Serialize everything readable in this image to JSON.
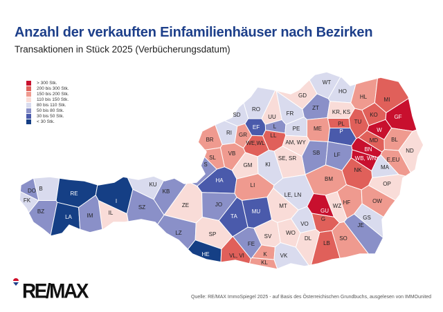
{
  "header": {
    "title": "Anzahl der verkauften Einfamilienhäuser nach Bezirken",
    "subtitle": "Transaktionen in Stück 2025 (Verbücherungsdatum)"
  },
  "legend": [
    {
      "label": "> 300 Stk.",
      "color": "#c8102e"
    },
    {
      "label": "200 bis 300 Stk.",
      "color": "#e0605a"
    },
    {
      "label": "150 bis 200 Stk.",
      "color": "#ef9a8f"
    },
    {
      "label": "110 bis 150 Stk.",
      "color": "#f9dcd8"
    },
    {
      "label": "80 bis  110 Stk.",
      "color": "#d9dbee"
    },
    {
      "label": "50 bis    80 Stk.",
      "color": "#8a90c8"
    },
    {
      "label": "30 bis    50 Stk.",
      "color": "#4a5aab"
    },
    {
      "label": "< 30 Stk.",
      "color": "#153f85"
    }
  ],
  "districts": [
    {
      "code": "WT",
      "class": 4
    },
    {
      "code": "HO",
      "class": 4
    },
    {
      "code": "GD",
      "class": 3
    },
    {
      "code": "HL",
      "class": 2
    },
    {
      "code": "MI",
      "class": 1
    },
    {
      "code": "ZT",
      "class": 5
    },
    {
      "code": "KR, KS",
      "class": 3
    },
    {
      "code": "TU",
      "class": 1
    },
    {
      "code": "KO",
      "class": 1
    },
    {
      "code": "GF",
      "class": 0
    },
    {
      "code": "FR",
      "class": 4
    },
    {
      "code": "UU",
      "class": 3
    },
    {
      "code": "RO",
      "class": 4
    },
    {
      "code": "SD",
      "class": 4
    },
    {
      "code": "RI",
      "class": 4
    },
    {
      "code": "GR",
      "class": 2
    },
    {
      "code": "EF",
      "class": 6
    },
    {
      "code": "L",
      "class": 5
    },
    {
      "code": "LL",
      "class": 1
    },
    {
      "code": "WE,WL",
      "class": 1
    },
    {
      "code": "PE",
      "class": 4
    },
    {
      "code": "ME",
      "class": 2
    },
    {
      "code": "PL",
      "class": 1
    },
    {
      "code": "P",
      "class": 6
    },
    {
      "code": "W",
      "class": 0
    },
    {
      "code": "MD",
      "class": 1
    },
    {
      "code": "BL",
      "class": 2
    },
    {
      "code": "BN",
      "class": 0
    },
    {
      "code": "ND",
      "class": 3
    },
    {
      "code": "WB, WN",
      "class": 0
    },
    {
      "code": "E,EU",
      "class": 2
    },
    {
      "code": "MA",
      "class": 4
    },
    {
      "code": "BR",
      "class": 2
    },
    {
      "code": "AM, WY",
      "class": 3
    },
    {
      "code": "SB",
      "class": 5
    },
    {
      "code": "LF",
      "class": 5
    },
    {
      "code": "NK",
      "class": 1
    },
    {
      "code": "OP",
      "class": 3
    },
    {
      "code": "VB",
      "class": 2
    },
    {
      "code": "SL",
      "class": 2
    },
    {
      "code": "S",
      "class": 5
    },
    {
      "code": "GM",
      "class": 3
    },
    {
      "code": "KI",
      "class": 4
    },
    {
      "code": "SE, SR",
      "class": 3
    },
    {
      "code": "HA",
      "class": 6
    },
    {
      "code": "LI",
      "class": 2
    },
    {
      "code": "BM",
      "class": 2
    },
    {
      "code": "DO",
      "class": 5
    },
    {
      "code": "B",
      "class": 4
    },
    {
      "code": "FK",
      "class": 4
    },
    {
      "code": "RE",
      "class": 7
    },
    {
      "code": "KU",
      "class": 4
    },
    {
      "code": "KB",
      "class": 5
    },
    {
      "code": "IL",
      "class": 3
    },
    {
      "code": "I",
      "class": 7
    },
    {
      "code": "ZE",
      "class": 3
    },
    {
      "code": "JO",
      "class": 5
    },
    {
      "code": "LE, LN",
      "class": 4
    },
    {
      "code": "MT",
      "class": 3
    },
    {
      "code": "GU",
      "class": 0
    },
    {
      "code": "G",
      "class": 1
    },
    {
      "code": "WZ",
      "class": 3
    },
    {
      "code": "HF",
      "class": 2
    },
    {
      "code": "OW",
      "class": 2
    },
    {
      "code": "GS",
      "class": 4
    },
    {
      "code": "JE",
      "class": 5
    },
    {
      "code": "BZ",
      "class": 5
    },
    {
      "code": "LA",
      "class": 7
    },
    {
      "code": "IM",
      "class": 5
    },
    {
      "code": "SZ",
      "class": 5
    },
    {
      "code": "LZ",
      "class": 5
    },
    {
      "code": "TA",
      "class": 6
    },
    {
      "code": "MU",
      "class": 6
    },
    {
      "code": "VO",
      "class": 4
    },
    {
      "code": "DL",
      "class": 3
    },
    {
      "code": "SP",
      "class": 3
    },
    {
      "code": "FE",
      "class": 5
    },
    {
      "code": "SV",
      "class": 3
    },
    {
      "code": "WO",
      "class": 3
    },
    {
      "code": "LB",
      "class": 1
    },
    {
      "code": "SO",
      "class": 2
    },
    {
      "code": "HE",
      "class": 7
    },
    {
      "code": "VL, VI",
      "class": 1
    },
    {
      "code": "K",
      "class": 2
    },
    {
      "code": "KL",
      "class": 2
    },
    {
      "code": "VK",
      "class": 4
    }
  ],
  "logo": {
    "text": "RE/MAX"
  },
  "footer": {
    "source": "Quelle: RE/MAX ImmoSpiegel 2025 - auf Basis des Österreichischen Grundbuchs, ausgelesen von IMMOunited"
  }
}
